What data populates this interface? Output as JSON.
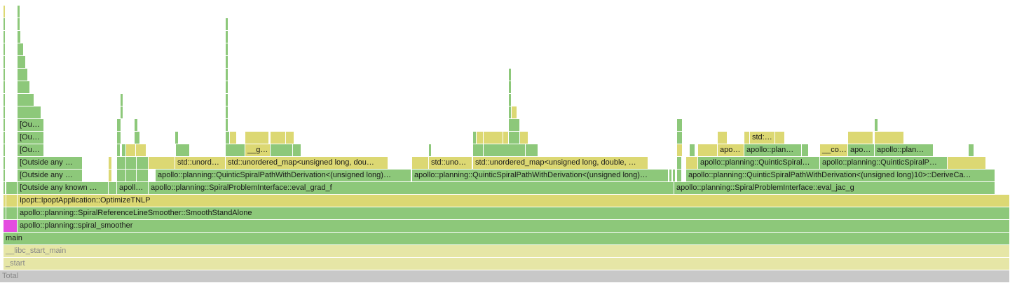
{
  "chart_data": {
    "type": "flamegraph",
    "title": "",
    "colors": {
      "green": "#8dc87a",
      "yellow": "#dcd873",
      "pale": "#e6e6a6",
      "magenta": "#e44ce0",
      "gray": "#c8c8c8",
      "total_text": "#888888"
    },
    "total_width": 1441,
    "depth_count": 22,
    "frames": [
      {
        "depth": 0,
        "start": 0,
        "width": 1441,
        "label": "Total",
        "color": "gray"
      },
      {
        "depth": 1,
        "start": 5,
        "width": 1436,
        "label": "_start",
        "color": "pale"
      },
      {
        "depth": 2,
        "start": 5,
        "width": 1436,
        "label": "__libc_start_main",
        "color": "pale"
      },
      {
        "depth": 3,
        "start": 5,
        "width": 1436,
        "label": "main",
        "color": "green"
      },
      {
        "depth": 4,
        "start": 5,
        "width": 20,
        "label": "",
        "color": "magenta"
      },
      {
        "depth": 4,
        "start": 25,
        "width": 1416,
        "label": "apollo::planning::spiral_smoother",
        "color": "green"
      },
      {
        "depth": 5,
        "start": 5,
        "width": 4,
        "label": "",
        "color": "green"
      },
      {
        "depth": 5,
        "start": 9,
        "width": 16,
        "label": "",
        "color": "green"
      },
      {
        "depth": 5,
        "start": 25,
        "width": 1416,
        "label": "apollo::planning::SpiralReferenceLineSmoother::SmoothStandAlone",
        "color": "green"
      },
      {
        "depth": 6,
        "start": 5,
        "width": 4,
        "label": "",
        "color": "yellow"
      },
      {
        "depth": 6,
        "start": 9,
        "width": 16,
        "label": "",
        "color": "yellow"
      },
      {
        "depth": 6,
        "start": 25,
        "width": 1416,
        "label": "Ipopt::IpoptApplication::OptimizeTNLP",
        "color": "yellow"
      },
      {
        "depth": 7,
        "start": 5,
        "width": 3,
        "label": "",
        "color": "green"
      },
      {
        "depth": 7,
        "start": 9,
        "width": 16,
        "label": "",
        "color": "green"
      },
      {
        "depth": 7,
        "start": 25,
        "width": 130,
        "label": "[Outside any known …",
        "color": "green"
      },
      {
        "depth": 7,
        "start": 155,
        "width": 12,
        "label": "",
        "color": "green"
      },
      {
        "depth": 7,
        "start": 167,
        "width": 45,
        "label": "apoll…",
        "color": "green"
      },
      {
        "depth": 7,
        "start": 212,
        "width": 750,
        "label": "apollo::planning::SpiralProblemInterface::eval_grad_f",
        "color": "green"
      },
      {
        "depth": 7,
        "start": 962,
        "width": 458,
        "label": "apollo::planning::SpiralProblemInterface::eval_jac_g",
        "color": "green"
      },
      {
        "depth": 8,
        "start": 5,
        "width": 3,
        "label": "",
        "color": "green"
      },
      {
        "depth": 8,
        "start": 25,
        "width": 93,
        "label": "[Outside any …",
        "color": "green"
      },
      {
        "depth": 8,
        "start": 155,
        "width": 5,
        "label": "",
        "color": "yellow"
      },
      {
        "depth": 8,
        "start": 167,
        "width": 13,
        "label": "",
        "color": "green"
      },
      {
        "depth": 8,
        "start": 180,
        "width": 15,
        "label": "",
        "color": "green"
      },
      {
        "depth": 8,
        "start": 195,
        "width": 17,
        "label": "",
        "color": "green"
      },
      {
        "depth": 8,
        "start": 222,
        "width": 365,
        "label": "apollo::planning::QuinticSpiralPathWithDerivation<(unsigned long)…",
        "color": "green"
      },
      {
        "depth": 8,
        "start": 588,
        "width": 366,
        "label": "apollo::planning::QuinticSpiralPathWithDerivation<(unsigned long)…",
        "color": "green"
      },
      {
        "depth": 8,
        "start": 955,
        "width": 4,
        "label": "",
        "color": "green"
      },
      {
        "depth": 8,
        "start": 960,
        "width": 4,
        "label": "",
        "color": "green"
      },
      {
        "depth": 8,
        "start": 966,
        "width": 7,
        "label": "",
        "color": "green"
      },
      {
        "depth": 8,
        "start": 979,
        "width": 441,
        "label": "apollo::planning::QuinticSpiralPathWithDerivation<(unsigned long)10>::DeriveCa…",
        "color": "green"
      },
      {
        "depth": 9,
        "start": 5,
        "width": 3,
        "label": "",
        "color": "green"
      },
      {
        "depth": 9,
        "start": 25,
        "width": 93,
        "label": "[Outside any …",
        "color": "green"
      },
      {
        "depth": 9,
        "start": 155,
        "width": 5,
        "label": "",
        "color": "yellow"
      },
      {
        "depth": 9,
        "start": 167,
        "width": 13,
        "label": "",
        "color": "green"
      },
      {
        "depth": 9,
        "start": 180,
        "width": 15,
        "label": "",
        "color": "green"
      },
      {
        "depth": 9,
        "start": 195,
        "width": 17,
        "label": "",
        "color": "green"
      },
      {
        "depth": 9,
        "start": 212,
        "width": 38,
        "label": "",
        "color": "yellow"
      },
      {
        "depth": 9,
        "start": 250,
        "width": 72,
        "label": "std::unord…",
        "color": "yellow"
      },
      {
        "depth": 9,
        "start": 322,
        "width": 232,
        "label": "std::unordered_map<unsigned long, dou…",
        "color": "yellow"
      },
      {
        "depth": 9,
        "start": 588,
        "width": 24,
        "label": "",
        "color": "yellow"
      },
      {
        "depth": 9,
        "start": 612,
        "width": 62,
        "label": "std::uno…",
        "color": "yellow"
      },
      {
        "depth": 9,
        "start": 675,
        "width": 250,
        "label": "std::unordered_map<unsigned long, double, …",
        "color": "yellow"
      },
      {
        "depth": 9,
        "start": 966,
        "width": 7,
        "label": "",
        "color": "green"
      },
      {
        "depth": 9,
        "start": 979,
        "width": 17,
        "label": "",
        "color": "yellow"
      },
      {
        "depth": 9,
        "start": 996,
        "width": 174,
        "label": "apollo::planning::QuinticSpiral…",
        "color": "green"
      },
      {
        "depth": 9,
        "start": 1170,
        "width": 182,
        "label": "apollo::planning::QuinticSpiralP…",
        "color": "green"
      },
      {
        "depth": 9,
        "start": 1352,
        "width": 55,
        "label": "",
        "color": "yellow"
      },
      {
        "depth": 10,
        "start": 5,
        "width": 3,
        "label": "",
        "color": "green"
      },
      {
        "depth": 10,
        "start": 25,
        "width": 38,
        "label": "[Ou…",
        "color": "green"
      },
      {
        "depth": 10,
        "start": 167,
        "width": 5,
        "label": "",
        "color": "green"
      },
      {
        "depth": 10,
        "start": 174,
        "width": 6,
        "label": "",
        "color": "green"
      },
      {
        "depth": 10,
        "start": 180,
        "width": 14,
        "label": "",
        "color": "yellow"
      },
      {
        "depth": 10,
        "start": 194,
        "width": 15,
        "label": "",
        "color": "yellow"
      },
      {
        "depth": 10,
        "start": 251,
        "width": 20,
        "label": "",
        "color": "green"
      },
      {
        "depth": 10,
        "start": 322,
        "width": 28,
        "label": "",
        "color": "green"
      },
      {
        "depth": 10,
        "start": 350,
        "width": 36,
        "label": "__g…",
        "color": "yellow"
      },
      {
        "depth": 10,
        "start": 386,
        "width": 32,
        "label": "",
        "color": "green"
      },
      {
        "depth": 10,
        "start": 418,
        "width": 12,
        "label": "",
        "color": "green"
      },
      {
        "depth": 10,
        "start": 612,
        "width": 4,
        "label": "",
        "color": "green"
      },
      {
        "depth": 10,
        "start": 675,
        "width": 15,
        "label": "",
        "color": "green"
      },
      {
        "depth": 10,
        "start": 690,
        "width": 60,
        "label": "",
        "color": "green"
      },
      {
        "depth": 10,
        "start": 750,
        "width": 18,
        "label": "",
        "color": "green"
      },
      {
        "depth": 10,
        "start": 966,
        "width": 8,
        "label": "",
        "color": "yellow"
      },
      {
        "depth": 10,
        "start": 984,
        "width": 8,
        "label": "",
        "color": "green"
      },
      {
        "depth": 10,
        "start": 996,
        "width": 28,
        "label": "",
        "color": "yellow"
      },
      {
        "depth": 10,
        "start": 1024,
        "width": 38,
        "label": "apo…",
        "color": "yellow"
      },
      {
        "depth": 10,
        "start": 1062,
        "width": 82,
        "label": "apollo::plan…",
        "color": "green"
      },
      {
        "depth": 10,
        "start": 1144,
        "width": 10,
        "label": "",
        "color": "green"
      },
      {
        "depth": 10,
        "start": 1170,
        "width": 40,
        "label": "__co…",
        "color": "yellow"
      },
      {
        "depth": 10,
        "start": 1210,
        "width": 38,
        "label": "apo…",
        "color": "green"
      },
      {
        "depth": 10,
        "start": 1248,
        "width": 84,
        "label": "apollo::plan…",
        "color": "green"
      },
      {
        "depth": 10,
        "start": 1382,
        "width": 8,
        "label": "",
        "color": "green"
      },
      {
        "depth": 11,
        "start": 5,
        "width": 3,
        "label": "",
        "color": "green"
      },
      {
        "depth": 11,
        "start": 25,
        "width": 38,
        "label": "[Ou…",
        "color": "green"
      },
      {
        "depth": 11,
        "start": 167,
        "width": 6,
        "label": "",
        "color": "green"
      },
      {
        "depth": 11,
        "start": 192,
        "width": 8,
        "label": "",
        "color": "green"
      },
      {
        "depth": 11,
        "start": 250,
        "width": 5,
        "label": "",
        "color": "green"
      },
      {
        "depth": 11,
        "start": 322,
        "width": 6,
        "label": "",
        "color": "green"
      },
      {
        "depth": 11,
        "start": 328,
        "width": 10,
        "label": "",
        "color": "yellow"
      },
      {
        "depth": 11,
        "start": 350,
        "width": 34,
        "label": "",
        "color": "yellow"
      },
      {
        "depth": 11,
        "start": 386,
        "width": 22,
        "label": "",
        "color": "yellow"
      },
      {
        "depth": 11,
        "start": 408,
        "width": 12,
        "label": "",
        "color": "yellow"
      },
      {
        "depth": 11,
        "start": 675,
        "width": 5,
        "label": "",
        "color": "green"
      },
      {
        "depth": 11,
        "start": 680,
        "width": 10,
        "label": "",
        "color": "yellow"
      },
      {
        "depth": 11,
        "start": 690,
        "width": 28,
        "label": "",
        "color": "yellow"
      },
      {
        "depth": 11,
        "start": 718,
        "width": 8,
        "label": "",
        "color": "yellow"
      },
      {
        "depth": 11,
        "start": 726,
        "width": 16,
        "label": "",
        "color": "green"
      },
      {
        "depth": 11,
        "start": 742,
        "width": 12,
        "label": "",
        "color": "yellow"
      },
      {
        "depth": 11,
        "start": 966,
        "width": 8,
        "label": "",
        "color": "green"
      },
      {
        "depth": 11,
        "start": 1024,
        "width": 14,
        "label": "",
        "color": "yellow"
      },
      {
        "depth": 11,
        "start": 1062,
        "width": 8,
        "label": "",
        "color": "yellow"
      },
      {
        "depth": 11,
        "start": 1070,
        "width": 36,
        "label": "std:…",
        "color": "yellow"
      },
      {
        "depth": 11,
        "start": 1106,
        "width": 14,
        "label": "",
        "color": "yellow"
      },
      {
        "depth": 11,
        "start": 1210,
        "width": 36,
        "label": "",
        "color": "yellow"
      },
      {
        "depth": 11,
        "start": 1248,
        "width": 42,
        "label": "",
        "color": "yellow"
      },
      {
        "depth": 12,
        "start": 5,
        "width": 3,
        "label": "",
        "color": "green"
      },
      {
        "depth": 12,
        "start": 25,
        "width": 38,
        "label": "[Ou…",
        "color": "green"
      },
      {
        "depth": 12,
        "start": 167,
        "width": 6,
        "label": "",
        "color": "green"
      },
      {
        "depth": 12,
        "start": 192,
        "width": 5,
        "label": "",
        "color": "green"
      },
      {
        "depth": 12,
        "start": 322,
        "width": 4,
        "label": "",
        "color": "green"
      },
      {
        "depth": 12,
        "start": 726,
        "width": 16,
        "label": "",
        "color": "green"
      },
      {
        "depth": 12,
        "start": 966,
        "width": 8,
        "label": "",
        "color": "green"
      },
      {
        "depth": 12,
        "start": 1248,
        "width": 5,
        "label": "",
        "color": "green"
      },
      {
        "depth": 13,
        "start": 5,
        "width": 3,
        "label": "",
        "color": "green"
      },
      {
        "depth": 13,
        "start": 25,
        "width": 34,
        "label": "",
        "color": "green"
      },
      {
        "depth": 13,
        "start": 172,
        "width": 4,
        "label": "",
        "color": "green"
      },
      {
        "depth": 13,
        "start": 322,
        "width": 4,
        "label": "",
        "color": "green"
      },
      {
        "depth": 13,
        "start": 726,
        "width": 4,
        "label": "",
        "color": "green"
      },
      {
        "depth": 13,
        "start": 730,
        "width": 8,
        "label": "",
        "color": "yellow"
      },
      {
        "depth": 14,
        "start": 5,
        "width": 3,
        "label": "",
        "color": "green"
      },
      {
        "depth": 14,
        "start": 25,
        "width": 24,
        "label": "",
        "color": "green"
      },
      {
        "depth": 14,
        "start": 172,
        "width": 4,
        "label": "",
        "color": "green"
      },
      {
        "depth": 14,
        "start": 322,
        "width": 4,
        "label": "",
        "color": "green"
      },
      {
        "depth": 14,
        "start": 726,
        "width": 4,
        "label": "",
        "color": "green"
      },
      {
        "depth": 15,
        "start": 5,
        "width": 3,
        "label": "",
        "color": "green"
      },
      {
        "depth": 15,
        "start": 25,
        "width": 18,
        "label": "",
        "color": "green"
      },
      {
        "depth": 15,
        "start": 322,
        "width": 4,
        "label": "",
        "color": "green"
      },
      {
        "depth": 15,
        "start": 726,
        "width": 4,
        "label": "",
        "color": "green"
      },
      {
        "depth": 16,
        "start": 5,
        "width": 3,
        "label": "",
        "color": "green"
      },
      {
        "depth": 16,
        "start": 25,
        "width": 15,
        "label": "",
        "color": "green"
      },
      {
        "depth": 16,
        "start": 322,
        "width": 4,
        "label": "",
        "color": "green"
      },
      {
        "depth": 16,
        "start": 726,
        "width": 4,
        "label": "",
        "color": "green"
      },
      {
        "depth": 17,
        "start": 5,
        "width": 3,
        "label": "",
        "color": "green"
      },
      {
        "depth": 17,
        "start": 25,
        "width": 12,
        "label": "",
        "color": "green"
      },
      {
        "depth": 17,
        "start": 322,
        "width": 4,
        "label": "",
        "color": "green"
      },
      {
        "depth": 18,
        "start": 5,
        "width": 3,
        "label": "",
        "color": "green"
      },
      {
        "depth": 18,
        "start": 25,
        "width": 9,
        "label": "",
        "color": "green"
      },
      {
        "depth": 18,
        "start": 322,
        "width": 4,
        "label": "",
        "color": "green"
      },
      {
        "depth": 19,
        "start": 5,
        "width": 3,
        "label": "",
        "color": "green"
      },
      {
        "depth": 19,
        "start": 25,
        "width": 5,
        "label": "",
        "color": "green"
      },
      {
        "depth": 19,
        "start": 322,
        "width": 4,
        "label": "",
        "color": "green"
      },
      {
        "depth": 20,
        "start": 5,
        "width": 3,
        "label": "",
        "color": "green"
      },
      {
        "depth": 20,
        "start": 25,
        "width": 4,
        "label": "",
        "color": "green"
      },
      {
        "depth": 20,
        "start": 322,
        "width": 4,
        "label": "",
        "color": "green"
      },
      {
        "depth": 21,
        "start": 5,
        "width": 3,
        "label": "",
        "color": "yellow"
      },
      {
        "depth": 21,
        "start": 25,
        "width": 4,
        "label": "",
        "color": "green"
      }
    ]
  }
}
